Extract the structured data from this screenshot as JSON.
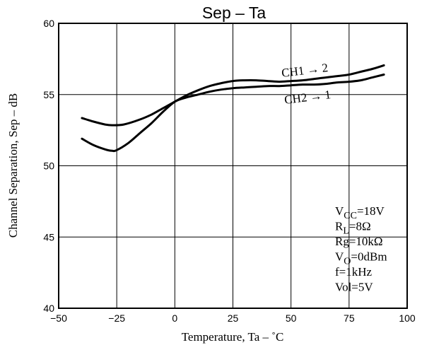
{
  "chart_data": {
    "type": "line",
    "title": "Sep  –  Ta",
    "xlabel": "Temperature,  Ta  –  ˚C",
    "ylabel": "Channel Separation,  Sep  –  dB",
    "xlim": [
      -50,
      100
    ],
    "ylim": [
      40,
      60
    ],
    "xticks": [
      "−50",
      "−25",
      "0",
      "25",
      "50",
      "75",
      "100"
    ],
    "yticks": [
      "40",
      "45",
      "50",
      "55",
      "60"
    ],
    "grid": true,
    "series": [
      {
        "name": "CH1 → 2",
        "x": [
          -40,
          -35,
          -30,
          -27,
          -22,
          -15,
          -10,
          -5,
          0,
          5,
          10,
          15,
          20,
          25,
          30,
          35,
          40,
          45,
          50,
          55,
          60,
          65,
          70,
          75,
          80,
          85,
          90
        ],
        "y": [
          53.35,
          53.1,
          52.9,
          52.85,
          52.9,
          53.25,
          53.6,
          54.05,
          54.5,
          54.95,
          55.3,
          55.6,
          55.8,
          55.95,
          56.0,
          56.0,
          55.95,
          55.9,
          55.95,
          56.0,
          56.1,
          56.2,
          56.3,
          56.4,
          56.6,
          56.8,
          57.05
        ]
      },
      {
        "name": "CH2 → 1",
        "x": [
          -40,
          -35,
          -30,
          -27,
          -25,
          -20,
          -15,
          -10,
          -5,
          0,
          5,
          10,
          15,
          20,
          25,
          30,
          35,
          40,
          45,
          50,
          55,
          60,
          65,
          70,
          75,
          80,
          85,
          90
        ],
        "y": [
          51.9,
          51.45,
          51.15,
          51.05,
          51.1,
          51.6,
          52.3,
          53.0,
          53.8,
          54.5,
          54.8,
          55.0,
          55.2,
          55.35,
          55.45,
          55.5,
          55.55,
          55.6,
          55.6,
          55.65,
          55.7,
          55.7,
          55.75,
          55.85,
          55.9,
          56.0,
          56.2,
          56.4
        ]
      }
    ],
    "annotations": {
      "curve_labels": [
        "CH1 → 2",
        "CH2 → 1"
      ],
      "conditions": [
        {
          "main": "V",
          "sub": "CC",
          "rest": "=18V"
        },
        {
          "main": "R",
          "sub": "L",
          "rest": "=8Ω"
        },
        {
          "main": "Rg=10kΩ",
          "sub": "",
          "rest": ""
        },
        {
          "main": "V",
          "sub": "O",
          "rest": "=0dBm"
        },
        {
          "main": "f=1kHz",
          "sub": "",
          "rest": ""
        },
        {
          "main": "Vol=5V",
          "sub": "",
          "rest": ""
        }
      ]
    }
  }
}
